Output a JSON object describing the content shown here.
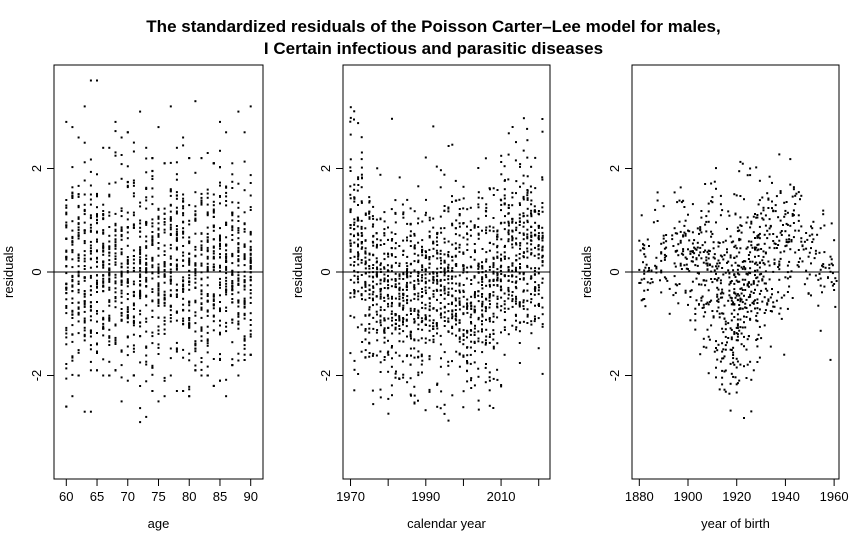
{
  "title_lines": [
    "The standardized residuals of the Poisson Carter–Lee model for males,",
    "I Certain infectious and parasitic diseases"
  ],
  "chart_data": [
    {
      "type": "scatter",
      "xlabel": "age",
      "ylabel": "residuals",
      "xlim": [
        58,
        92
      ],
      "ylim": [
        -4,
        4
      ],
      "xticks": [
        60,
        65,
        70,
        75,
        80,
        85,
        90
      ],
      "yticks": [
        -2,
        0,
        2
      ],
      "hline": 0,
      "x_values": "integer ages 60..90",
      "y_range": [
        -2.9,
        3.75
      ],
      "x": [
        60,
        61,
        62,
        63,
        64,
        65,
        66,
        67,
        68,
        69,
        70,
        71,
        72,
        73,
        74,
        75,
        76,
        77,
        78,
        79,
        80,
        81,
        82,
        83,
        84,
        85,
        86,
        87,
        88,
        89,
        90
      ],
      "y_min": [
        -2.6,
        -2.4,
        -2.0,
        -2.7,
        -2.7,
        -1.9,
        -2.0,
        -2.0,
        -1.9,
        -2.5,
        -2.1,
        -2.0,
        -2.9,
        -2.8,
        -2.3,
        -2.5,
        -2.4,
        -2.0,
        -2.3,
        -2.3,
        -2.4,
        -1.9,
        -2.0,
        -2.0,
        -2.2,
        -2.1,
        -2.4,
        -1.8,
        -2.0,
        -1.7,
        -1.6
      ],
      "y_max": [
        2.9,
        2.8,
        2.6,
        3.2,
        3.7,
        3.7,
        2.4,
        2.4,
        2.9,
        2.6,
        2.7,
        2.5,
        3.1,
        2.4,
        2.2,
        2.8,
        2.1,
        3.2,
        2.4,
        2.6,
        2.2,
        3.3,
        2.2,
        2.3,
        2.1,
        2.9,
        2.7,
        2.1,
        3.1,
        2.7,
        3.2
      ]
    },
    {
      "type": "scatter",
      "xlabel": "calendar year",
      "ylabel": "residuals",
      "xlim": [
        1968,
        2023
      ],
      "ylim": [
        -4,
        4
      ],
      "xticks": [
        1970,
        1990,
        2010
      ],
      "minor_xticks": [
        1980,
        2000,
        2020
      ],
      "yticks": [
        -2,
        0,
        2
      ],
      "hline": 0,
      "x_values": "integer years 1970..2021",
      "y_range": [
        -2.9,
        3.75
      ],
      "trend": [
        {
          "x": 1970,
          "y": 1.2
        },
        {
          "x": 1975,
          "y": -0.2
        },
        {
          "x": 1985,
          "y": -0.5
        },
        {
          "x": 1995,
          "y": -0.3
        },
        {
          "x": 2005,
          "y": -0.6
        },
        {
          "x": 2012,
          "y": 0.4
        },
        {
          "x": 2021,
          "y": 0.6
        }
      ]
    },
    {
      "type": "scatter",
      "xlabel": "year of birth",
      "ylabel": "residuals",
      "xlim": [
        1877,
        1962
      ],
      "ylim": [
        -4,
        4
      ],
      "xticks": [
        1880,
        1900,
        1920,
        1940,
        1960
      ],
      "yticks": [
        -2,
        0,
        2
      ],
      "hline": 0,
      "x_values": "birth cohorts 1880..1961",
      "y_range": [
        -2.9,
        3.75
      ],
      "trend": [
        {
          "x": 1880,
          "y": 0.0
        },
        {
          "x": 1895,
          "y": 0.6
        },
        {
          "x": 1908,
          "y": 0.0
        },
        {
          "x": 1918,
          "y": -0.8
        },
        {
          "x": 1930,
          "y": 0.3
        },
        {
          "x": 1945,
          "y": 0.6
        },
        {
          "x": 1961,
          "y": -0.4
        }
      ]
    }
  ]
}
